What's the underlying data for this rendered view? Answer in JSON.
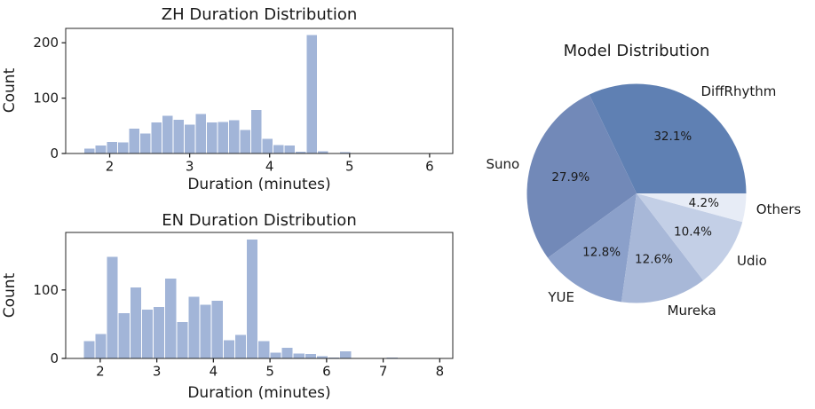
{
  "page": {
    "background": "#ffffff",
    "text_color": "#1a1a1a",
    "axis_color": "#262626"
  },
  "chart_data": [
    {
      "id": "zh-duration-histogram",
      "type": "bar",
      "title": "ZH Duration Distribution",
      "xlabel": "Duration (minutes)",
      "ylabel": "Count",
      "bar_color": "#a2b5d8",
      "bar_edge_color": "#ffffff",
      "grid": false,
      "legend": "none",
      "xlim": [
        1.45,
        6.29
      ],
      "ylim": [
        0,
        226
      ],
      "xticks": [
        2,
        3,
        4,
        5,
        6
      ],
      "yticks": [
        0,
        100,
        200
      ],
      "bins": {
        "start": 1.68,
        "width": 0.139
      },
      "values": [
        10,
        15,
        22,
        21,
        46,
        37,
        57,
        69,
        62,
        53,
        72,
        57,
        58,
        61,
        43,
        79,
        27,
        16,
        15,
        4,
        215,
        5,
        0,
        3,
        0,
        1,
        2
      ]
    },
    {
      "id": "en-duration-histogram",
      "type": "bar",
      "title": "EN Duration Distribution",
      "xlabel": "Duration (minutes)",
      "ylabel": "Count",
      "bar_color": "#a2b5d8",
      "bar_edge_color": "#ffffff",
      "grid": false,
      "legend": "none",
      "xlim": [
        1.39,
        8.23
      ],
      "ylim": [
        0,
        184
      ],
      "xticks": [
        2,
        3,
        4,
        5,
        6,
        7,
        8
      ],
      "yticks": [
        0,
        100
      ],
      "bins": {
        "start": 1.7,
        "width": 0.206
      },
      "values": [
        26,
        36,
        149,
        67,
        104,
        72,
        76,
        117,
        54,
        91,
        79,
        85,
        27,
        35,
        174,
        26,
        9,
        16,
        8,
        7,
        4,
        2,
        11,
        0,
        0,
        0,
        2
      ]
    },
    {
      "id": "model-distribution-pie",
      "type": "pie",
      "title": "Model Distribution",
      "start_angle_deg": 0,
      "direction": "counterclockwise",
      "slices": [
        {
          "label": "DiffRhythm",
          "value": 32.1,
          "pct_label": "32.1%",
          "color": "#5f80b3"
        },
        {
          "label": "Suno",
          "value": 27.9,
          "pct_label": "27.9%",
          "color": "#7289b8"
        },
        {
          "label": "YUE",
          "value": 12.8,
          "pct_label": "12.8%",
          "color": "#8ba0ca"
        },
        {
          "label": "Mureka",
          "value": 12.6,
          "pct_label": "12.6%",
          "color": "#a8b8d8"
        },
        {
          "label": "Udio",
          "value": 10.4,
          "pct_label": "10.4%",
          "color": "#c3cfe6"
        },
        {
          "label": "Others",
          "value": 4.2,
          "pct_label": "4.2%",
          "color": "#e7ecf6"
        }
      ]
    }
  ]
}
